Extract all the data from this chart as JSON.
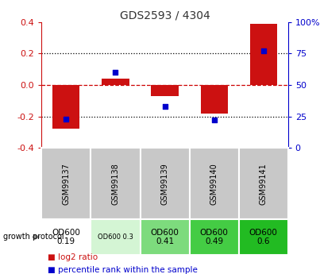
{
  "title": "GDS2593 / 4304",
  "samples": [
    "GSM99137",
    "GSM99138",
    "GSM99139",
    "GSM99140",
    "GSM99141"
  ],
  "log2_ratio": [
    -0.28,
    0.04,
    -0.07,
    -0.18,
    0.39
  ],
  "percentile_rank": [
    23,
    60,
    33,
    22,
    77
  ],
  "ylim": [
    -0.4,
    0.4
  ],
  "yticks_left": [
    -0.4,
    -0.2,
    0.0,
    0.2,
    0.4
  ],
  "yticks_right_labels": [
    "0",
    "25",
    "50",
    "75",
    "100%"
  ],
  "protocol_labels": [
    "OD600\n0.19",
    "OD600 0.3",
    "OD600\n0.41",
    "OD600\n0.49",
    "OD600\n0.6"
  ],
  "protocol_colors": [
    "#ffffff",
    "#d4f5d4",
    "#7ddb7d",
    "#44cc44",
    "#22bb22"
  ],
  "protocol_small_text": [
    false,
    true,
    false,
    false,
    false
  ],
  "bar_color": "#cc1111",
  "scatter_color": "#0000cc",
  "zero_line_color": "#cc0000",
  "dotted_line_color": "#000000",
  "title_color": "#333333",
  "left_axis_color": "#cc1111",
  "right_axis_color": "#0000cc",
  "bar_width": 0.55,
  "sample_bg_color": "#c8c8c8",
  "legend_red_label": "log2 ratio",
  "legend_blue_label": "percentile rank within the sample"
}
